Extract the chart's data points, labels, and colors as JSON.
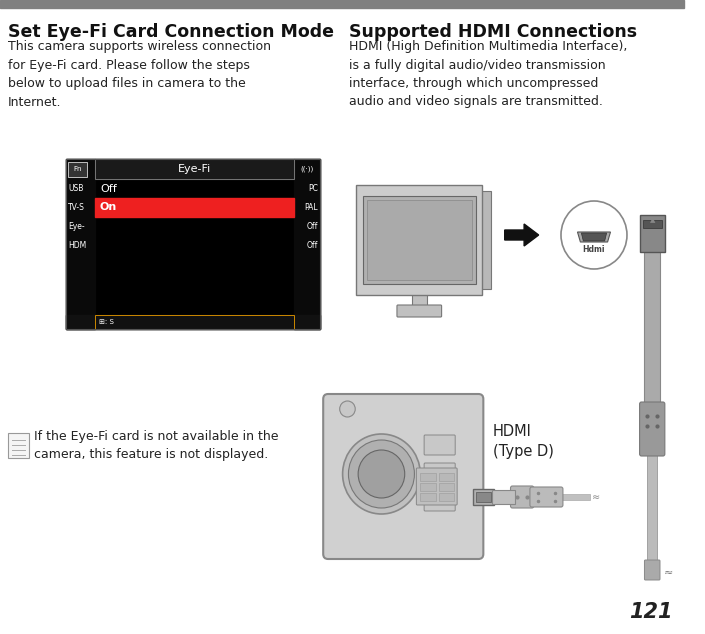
{
  "bg_color": "#ffffff",
  "top_bar_color": "#808080",
  "page_number": "121",
  "left_title": "Set Eye-Fi Card Connection Mode",
  "left_body": "This camera supports wireless connection\nfor Eye-Fi card. Please follow the steps\nbelow to upload files in camera to the\nInternet.",
  "note_text": "If the Eye-Fi card is not available in the\ncamera, this feature is not displayed.",
  "right_title": "Supported HDMI Connections",
  "right_body": "HDMI (High Definition Multimedia Interface),\nis a fully digital audio/video transmission\ninterface, through which uncompressed\naudio and video signals are transmitted.",
  "hdmi_label": "HDMI\n(Type D)",
  "menu_bg": "#000000",
  "menu_header_text": "Eye-Fi",
  "menu_selected_bg": "#ee2020",
  "menu_items_left": [
    "USB",
    "TV-S",
    "Eye-",
    "HDM"
  ],
  "menu_items_right": [
    "PC",
    "PAL",
    "Off",
    "Off"
  ],
  "text_color": "#222222",
  "title_color": "#111111",
  "gray_light": "#cccccc",
  "gray_mid": "#aaaaaa",
  "gray_dark": "#888888",
  "gray_darker": "#666666"
}
